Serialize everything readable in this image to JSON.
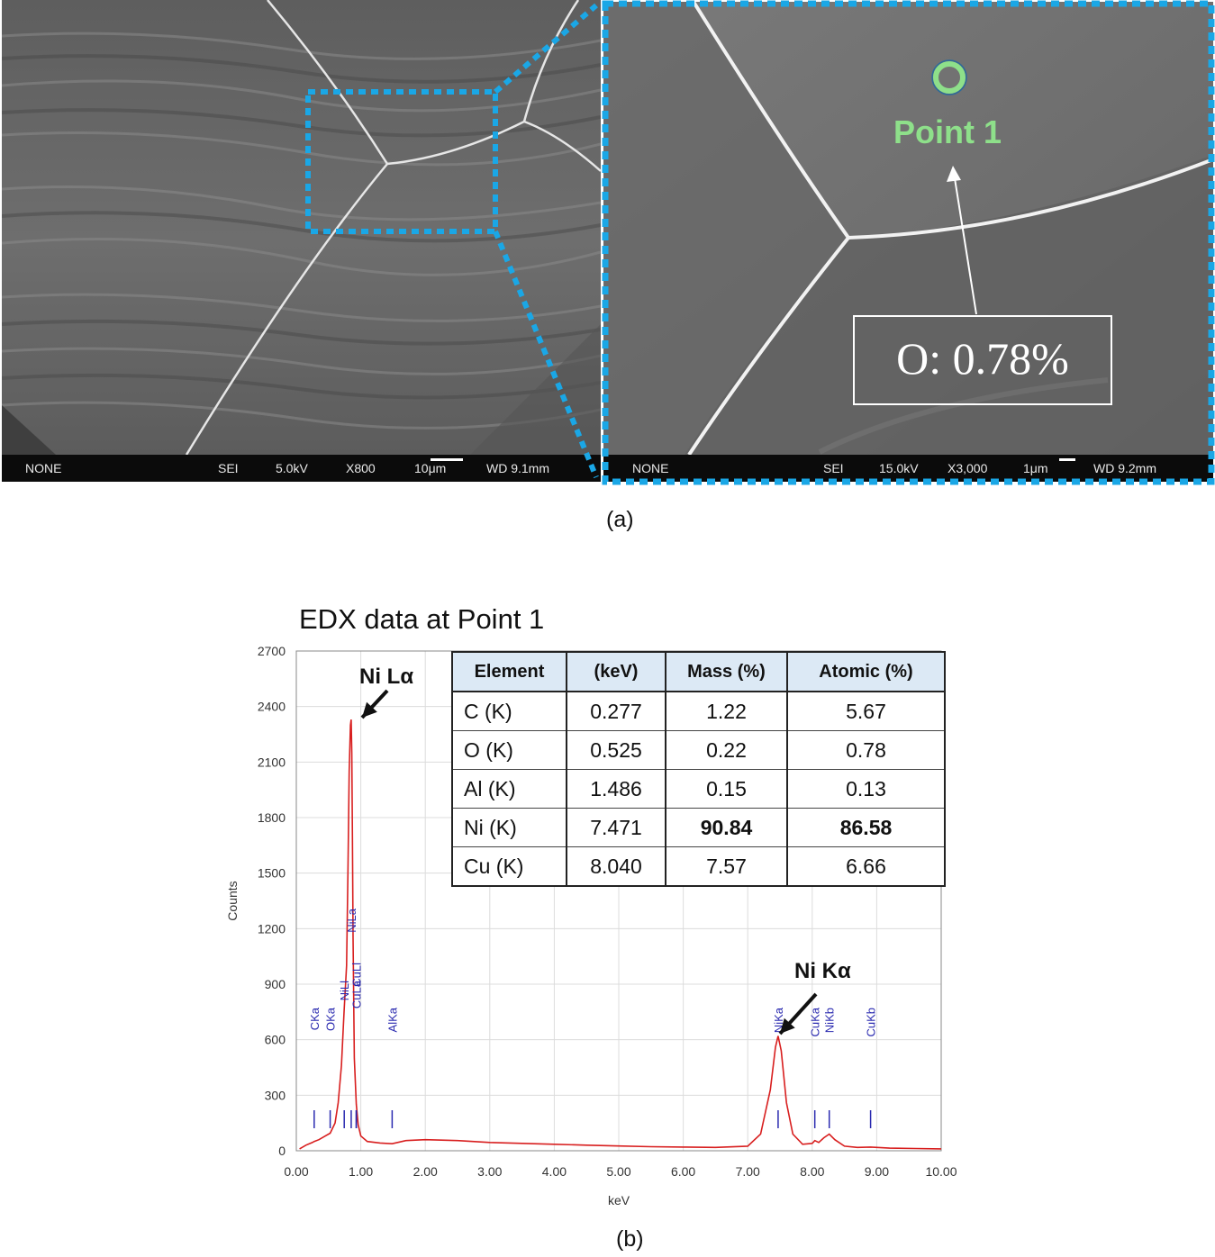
{
  "sem_left": {
    "info": {
      "signal": "NONE",
      "mode": "SEI",
      "voltage": "5.0kV",
      "mag": "X800",
      "scale": "10μm",
      "wd": "WD 9.1mm"
    }
  },
  "sem_right": {
    "info": {
      "signal": "NONE",
      "mode": "SEI",
      "voltage": "15.0kV",
      "mag": "X3,000",
      "scale": "1μm",
      "wd": "WD 9.2mm"
    },
    "point_label": "Point 1",
    "oxygen_result": "O: 0.78%"
  },
  "captions": {
    "a": "(a)",
    "b": "(b)"
  },
  "colors": {
    "highlight": "#1aa7e6",
    "point_marker": "#8ee08a",
    "spectrum": "#d81f1f",
    "peak_label": "#2b2bb0"
  },
  "table": {
    "headers": [
      "Element",
      "(keV)",
      "Mass (%)",
      "Atomic (%)"
    ],
    "rows": [
      {
        "element": "C (K)",
        "kev": "0.277",
        "mass": "1.22",
        "atomic": "5.67",
        "bold": false
      },
      {
        "element": "O (K)",
        "kev": "0.525",
        "mass": "0.22",
        "atomic": "0.78",
        "bold": false
      },
      {
        "element": "Al (K)",
        "kev": "1.486",
        "mass": "0.15",
        "atomic": "0.13",
        "bold": false
      },
      {
        "element": "Ni (K)",
        "kev": "7.471",
        "mass": "90.84",
        "atomic": "86.58",
        "bold": true
      },
      {
        "element": "Cu (K)",
        "kev": "8.040",
        "mass": "7.57",
        "atomic": "6.66",
        "bold": false
      }
    ]
  },
  "chart_data": {
    "type": "line",
    "title": "EDX data at Point 1",
    "xlabel": "keV",
    "ylabel": "Counts",
    "xlim": [
      0,
      10
    ],
    "ylim": [
      0,
      2700
    ],
    "xticks": [
      "0.00",
      "1.00",
      "2.00",
      "3.00",
      "4.00",
      "5.00",
      "6.00",
      "7.00",
      "8.00",
      "9.00",
      "10.00"
    ],
    "yticks": [
      "0",
      "300",
      "600",
      "900",
      "1200",
      "1500",
      "1800",
      "2100",
      "2400",
      "2700"
    ],
    "grid": true,
    "series": [
      {
        "x": [
          0.05,
          0.15,
          0.25,
          0.277,
          0.35,
          0.45,
          0.525,
          0.6,
          0.65,
          0.7,
          0.74,
          0.78,
          0.8,
          0.82,
          0.84,
          0.851,
          0.86,
          0.87,
          0.88,
          0.9,
          0.93,
          0.96,
          1.0,
          1.1,
          1.3,
          1.486,
          1.7,
          2.0,
          2.5,
          3.0,
          3.5,
          4.0,
          4.5,
          5.0,
          5.5,
          6.0,
          6.5,
          7.0,
          7.2,
          7.35,
          7.43,
          7.471,
          7.52,
          7.6,
          7.7,
          7.85,
          8.0,
          8.04,
          8.1,
          8.18,
          8.264,
          8.35,
          8.5,
          8.7,
          8.905,
          9.2,
          9.6,
          10.0
        ],
        "y": [
          10,
          30,
          45,
          50,
          60,
          80,
          95,
          150,
          260,
          460,
          750,
          1000,
          1500,
          2050,
          2300,
          2330,
          2150,
          1700,
          1150,
          500,
          250,
          140,
          80,
          50,
          42,
          38,
          55,
          60,
          55,
          45,
          40,
          35,
          30,
          26,
          22,
          20,
          18,
          25,
          90,
          330,
          560,
          620,
          540,
          260,
          90,
          35,
          40,
          55,
          45,
          70,
          90,
          60,
          25,
          18,
          20,
          14,
          12,
          10
        ]
      }
    ],
    "annotations": [
      {
        "text": "Ni Lα",
        "x": 0.851,
        "y": 2330
      },
      {
        "text": "Ni Kα",
        "x": 7.471,
        "y": 620
      }
    ],
    "peak_markers": [
      {
        "label": "CKa",
        "x": 0.277,
        "h": 110
      },
      {
        "label": "OKa",
        "x": 0.525,
        "h": 110
      },
      {
        "label": "NiLa",
        "x": 0.851,
        "h": 220
      },
      {
        "label": "CuLl",
        "x": 0.929,
        "h": 160
      },
      {
        "label": "NiLl",
        "x": 0.743,
        "h": 140
      },
      {
        "label": "CuLa",
        "x": 0.93,
        "h": 140
      },
      {
        "label": "AlKa",
        "x": 1.486,
        "h": 110
      },
      {
        "label": "NiKa",
        "x": 7.471,
        "h": 110
      },
      {
        "label": "CuKa",
        "x": 8.04,
        "h": 110
      },
      {
        "label": "NiKb",
        "x": 8.264,
        "h": 110
      },
      {
        "label": "CuKb",
        "x": 8.905,
        "h": 110
      }
    ]
  }
}
